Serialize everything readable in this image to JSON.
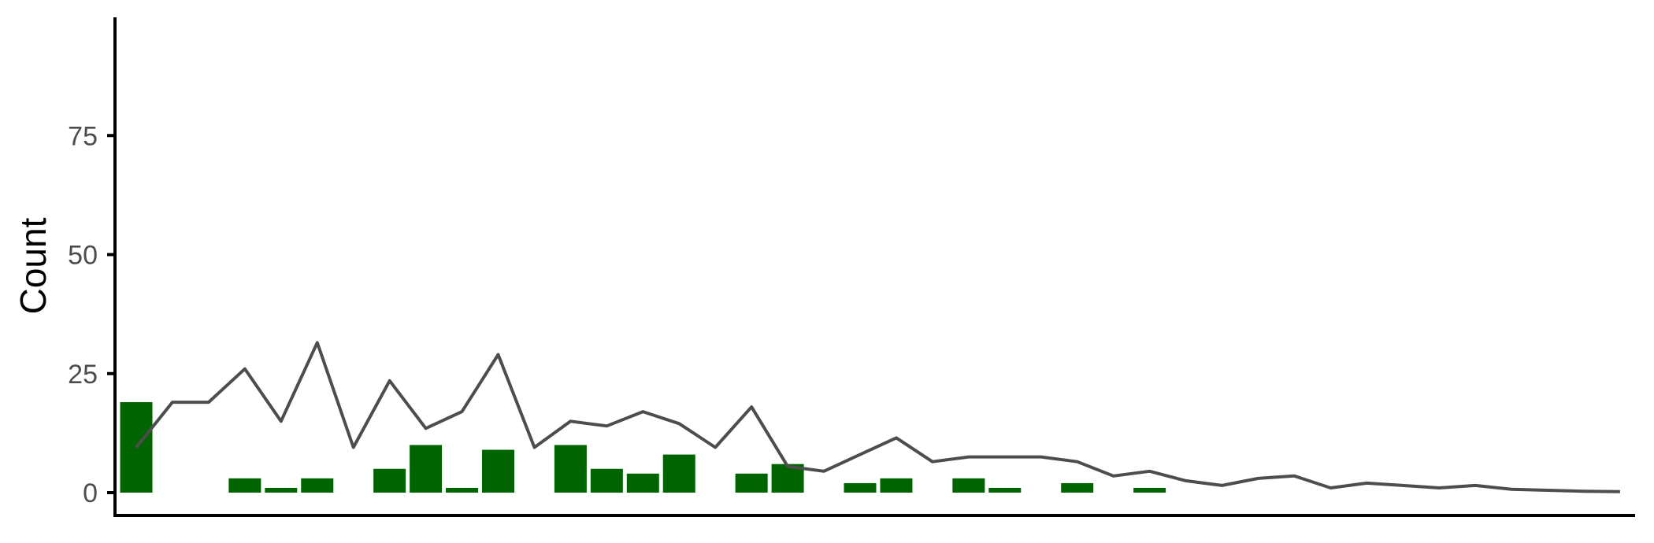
{
  "chart_data": {
    "type": "bar",
    "ylabel": "Count",
    "xlabel": "",
    "ylim": [
      -4.5,
      100
    ],
    "yticks": [
      0,
      25,
      50,
      75
    ],
    "x_ticks_shown": false,
    "grid": false,
    "colors": {
      "bar": "#006400",
      "line": "#4d4d4d",
      "axis": "#000000"
    },
    "series": [
      {
        "kind": "bar",
        "values": [
          19,
          0,
          0,
          3,
          1,
          3,
          0,
          5,
          10,
          1,
          9,
          0,
          10,
          5,
          4,
          8,
          0,
          4,
          6,
          0,
          2,
          3,
          0,
          3,
          1,
          0,
          2,
          0,
          1,
          0,
          0,
          0,
          0,
          0,
          0,
          0,
          0,
          0,
          0,
          0,
          0,
          0
        ]
      },
      {
        "kind": "line",
        "values": [
          9.5,
          19,
          19,
          26,
          15,
          31.5,
          9.5,
          23.5,
          13.5,
          17,
          29,
          9.5,
          15,
          14,
          17,
          14.5,
          9.5,
          18,
          5.5,
          4.5,
          8,
          11.5,
          6.5,
          7.5,
          7.5,
          7.5,
          6.5,
          3.5,
          4.5,
          2.5,
          1.5,
          3,
          3.5,
          1,
          2,
          1.5,
          1,
          1.5,
          0.7,
          0.5,
          0.3,
          0.2
        ]
      }
    ]
  }
}
